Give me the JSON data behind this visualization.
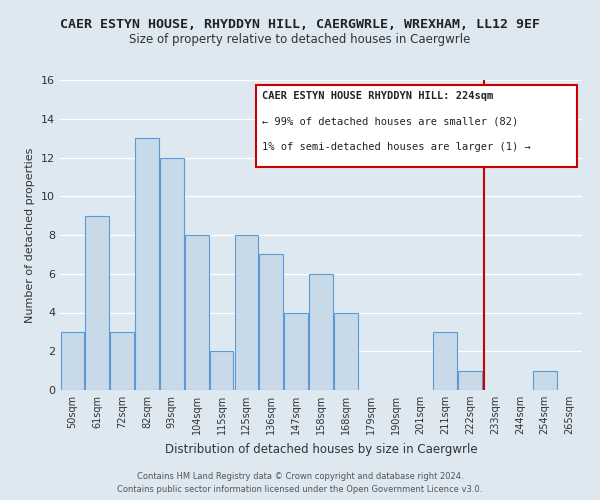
{
  "title": "CAER ESTYN HOUSE, RHYDDYN HILL, CAERGWRLE, WREXHAM, LL12 9EF",
  "subtitle": "Size of property relative to detached houses in Caergwrle",
  "xlabel": "Distribution of detached houses by size in Caergwrle",
  "ylabel": "Number of detached properties",
  "bar_labels": [
    "50sqm",
    "61sqm",
    "72sqm",
    "82sqm",
    "93sqm",
    "104sqm",
    "115sqm",
    "125sqm",
    "136sqm",
    "147sqm",
    "158sqm",
    "168sqm",
    "179sqm",
    "190sqm",
    "201sqm",
    "211sqm",
    "222sqm",
    "233sqm",
    "244sqm",
    "254sqm",
    "265sqm"
  ],
  "bar_values": [
    3,
    9,
    3,
    13,
    12,
    8,
    2,
    8,
    7,
    4,
    6,
    4,
    0,
    0,
    0,
    3,
    1,
    0,
    0,
    1,
    0
  ],
  "bar_color": "#c8d9e8",
  "bar_edge_color": "#5b9bd5",
  "ylim": [
    0,
    16
  ],
  "yticks": [
    0,
    2,
    4,
    6,
    8,
    10,
    12,
    14,
    16
  ],
  "vline_x_index": 16.54,
  "vline_color": "#cc0000",
  "annotation_title": "CAER ESTYN HOUSE RHYDDYN HILL: 224sqm",
  "annotation_line1": "← 99% of detached houses are smaller (82)",
  "annotation_line2": "1% of semi-detached houses are larger (1) →",
  "footer_line1": "Contains HM Land Registry data © Crown copyright and database right 2024.",
  "footer_line2": "Contains public sector information licensed under the Open Government Licence v3.0.",
  "background_color": "#dde8f0",
  "grid_color": "#ffffff"
}
